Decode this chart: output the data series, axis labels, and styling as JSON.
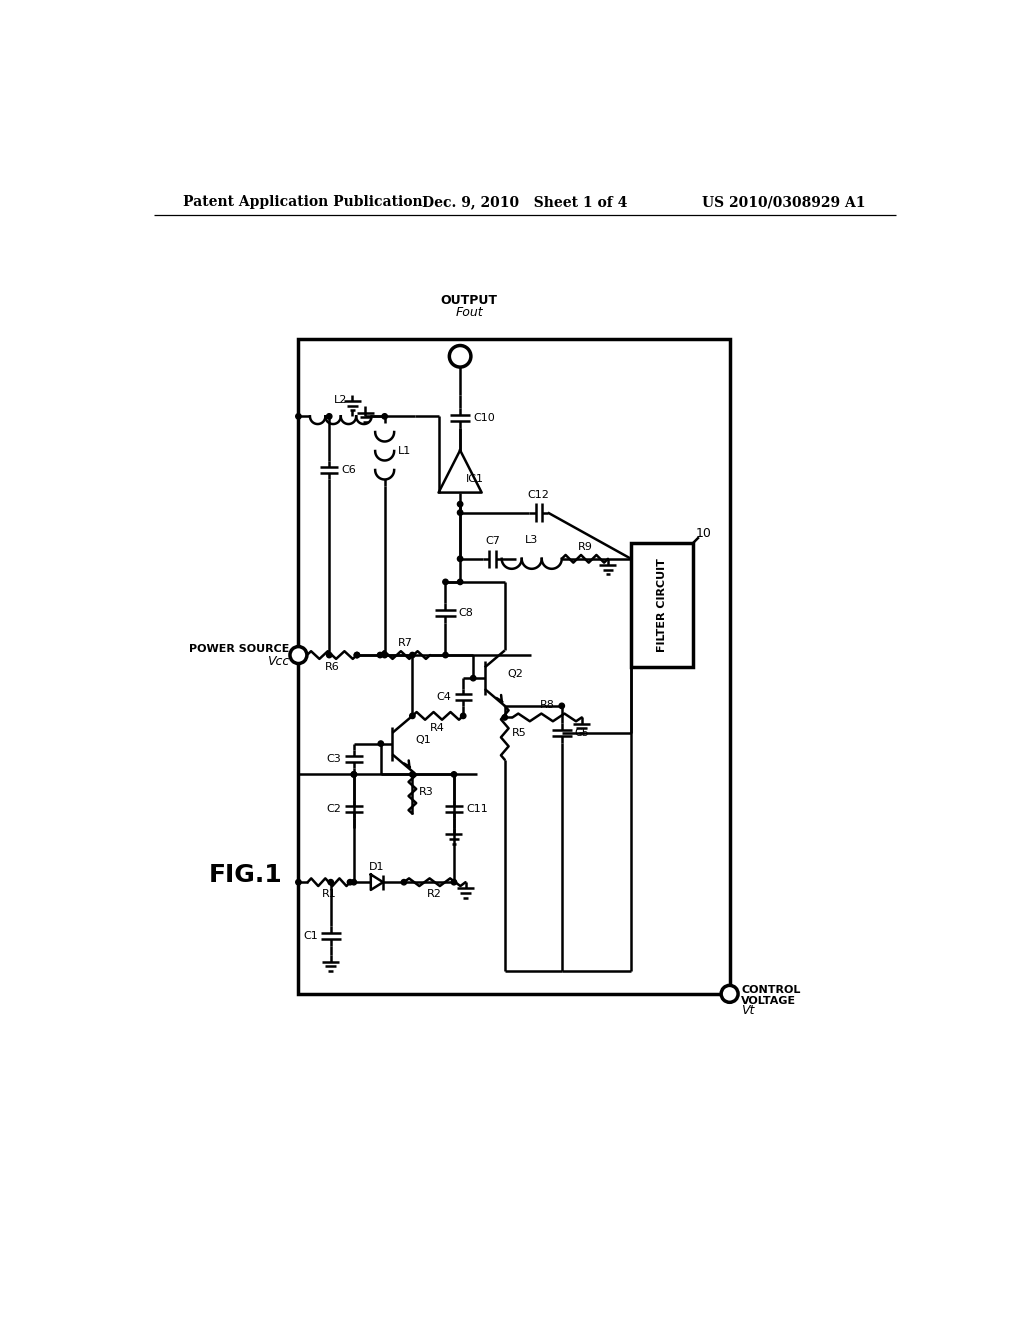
{
  "bg": "#ffffff",
  "header_left": "Patent Application Publication",
  "header_center": "Dec. 9, 2010   Sheet 1 of 4",
  "header_right": "US 2010/0308929 A1",
  "fig_label": "FIG.1",
  "output_line1": "OUTPUT",
  "output_line2": "Fout",
  "power_line1": "POWER SOURCE",
  "power_line2": "Vcc",
  "ctrl_line1": "CONTROL",
  "ctrl_line2": "VOLTAGE",
  "ctrl_line3": "Vt",
  "filter_text": "FILTER CIRCUIT",
  "filter_ref": "10",
  "lw": 1.8,
  "lw_border": 2.5
}
